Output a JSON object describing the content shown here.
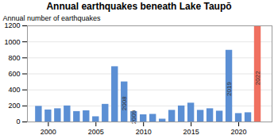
{
  "chart_data": {
    "type": "bar",
    "title": "Annual earthquakes beneath Lake Taupō",
    "ylabel": "Annual number of earthquakes",
    "x": [
      1999,
      2000,
      2001,
      2002,
      2003,
      2004,
      2005,
      2006,
      2007,
      2008,
      2009,
      2010,
      2011,
      2012,
      2013,
      2014,
      2015,
      2016,
      2017,
      2018,
      2019,
      2020,
      2021,
      2022
    ],
    "values": [
      195,
      150,
      165,
      200,
      130,
      140,
      65,
      220,
      690,
      500,
      130,
      90,
      95,
      35,
      145,
      200,
      235,
      145,
      165,
      135,
      895,
      105,
      115,
      1190
    ],
    "colors": [
      "#5b8fd4",
      "#5b8fd4",
      "#5b8fd4",
      "#5b8fd4",
      "#5b8fd4",
      "#5b8fd4",
      "#5b8fd4",
      "#5b8fd4",
      "#5b8fd4",
      "#5b8fd4",
      "#5b8fd4",
      "#5b8fd4",
      "#5b8fd4",
      "#5b8fd4",
      "#5b8fd4",
      "#5b8fd4",
      "#5b8fd4",
      "#5b8fd4",
      "#5b8fd4",
      "#5b8fd4",
      "#5b8fd4",
      "#5b8fd4",
      "#5b8fd4",
      "#f07060"
    ],
    "annotations": [
      {
        "x": 2008,
        "text": "2008"
      },
      {
        "x": 2009,
        "text": "2009"
      },
      {
        "x": 2019,
        "text": "2019"
      },
      {
        "x": 2022,
        "text": "2022"
      }
    ],
    "xlim": [
      1997.8,
      2023.5
    ],
    "xticks": [
      2000,
      2005,
      2010,
      2015,
      2020
    ],
    "ylim": [
      0,
      1200
    ],
    "yticks": [
      0,
      200,
      400,
      600,
      800,
      1000,
      1200
    ],
    "grid": true
  }
}
